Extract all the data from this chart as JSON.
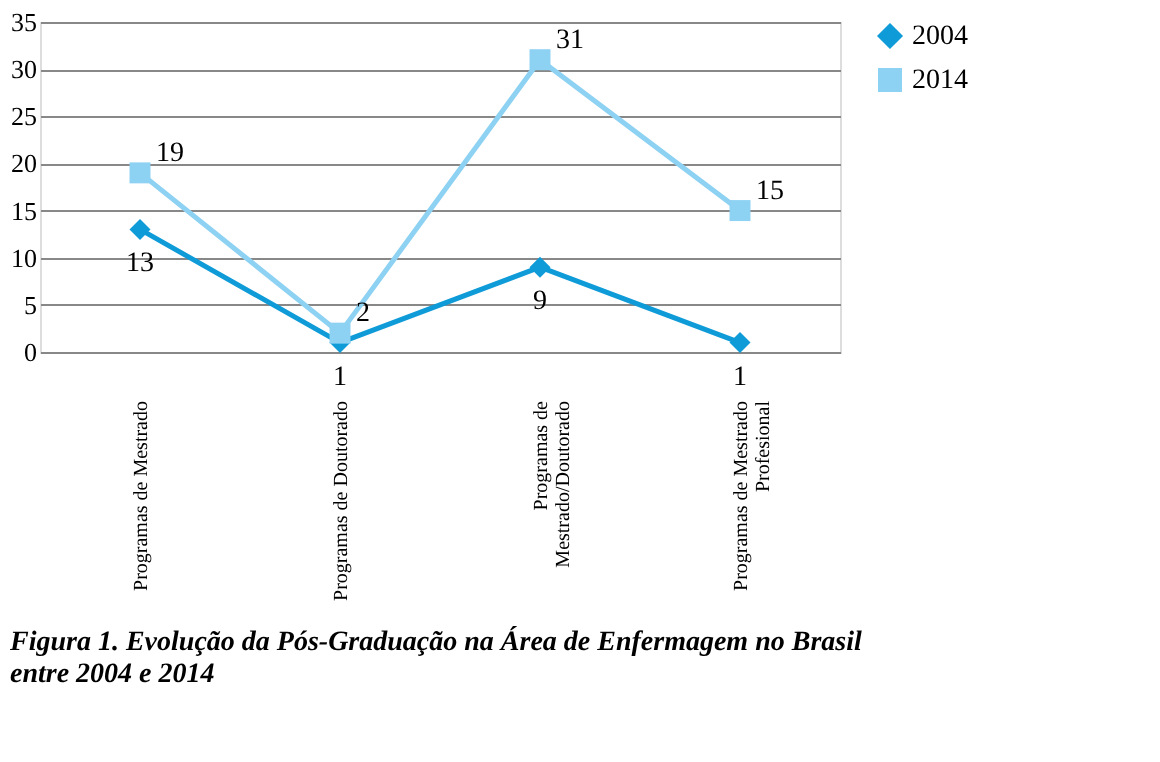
{
  "chart_data": {
    "type": "line",
    "categories": [
      "Programas de Mestrado",
      "Programas de Doutorado",
      "Programas de Mestrado/Doutorado",
      "Programas de Mestrado Profesional"
    ],
    "series": [
      {
        "name": "2004",
        "color": "#0e9bd8",
        "marker": "diamond",
        "values": [
          13,
          1,
          9,
          1
        ]
      },
      {
        "name": "2014",
        "color": "#8dd1f3",
        "marker": "square",
        "values": [
          19,
          2,
          31,
          15
        ]
      }
    ],
    "ylim": [
      0,
      35
    ],
    "yticks": [
      0,
      5,
      10,
      15,
      20,
      25,
      30,
      35
    ],
    "grid": "y",
    "legend": "right",
    "data_labels": true,
    "annotations": [
      "Figura 1. Evolução da Pós-Graduação na Área de Enfermagem no Brasil entre 2004 e 2014"
    ]
  }
}
